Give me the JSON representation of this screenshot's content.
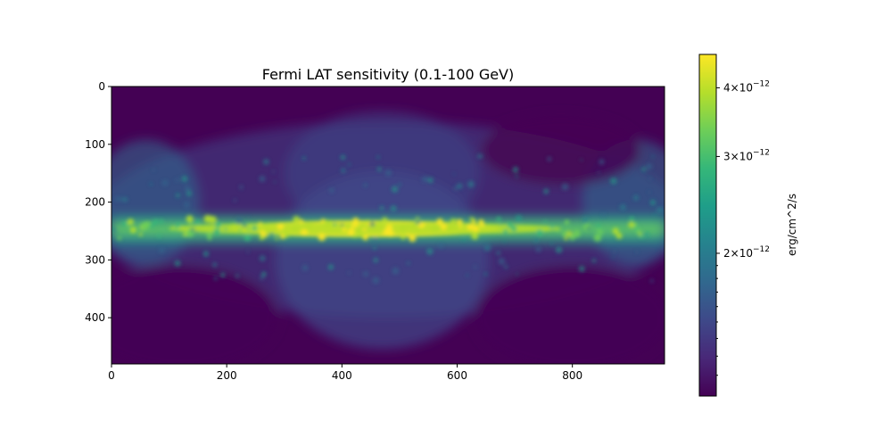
{
  "chart_data": {
    "type": "heatmap",
    "title": "Fermi LAT sensitivity (0.1-100 GeV)",
    "xlabel": "",
    "ylabel": "",
    "xlim": [
      0,
      960
    ],
    "ylim": [
      480,
      0
    ],
    "x_ticks": [
      0,
      200,
      400,
      600,
      800
    ],
    "y_ticks": [
      0,
      100,
      200,
      300,
      400
    ],
    "colorbar": {
      "label": "erg/cm^2/s",
      "scale": "log",
      "colormap": "viridis",
      "range": [
        1.1e-12,
        4.6e-12
      ],
      "ticks": [
        {
          "value": 4e-12,
          "mantissa": "4",
          "base": "10",
          "exponent": "−12"
        },
        {
          "value": 3e-12,
          "mantissa": "3",
          "base": "10",
          "exponent": "−12"
        },
        {
          "value": 2e-12,
          "mantissa": "2",
          "base": "10",
          "exponent": "−12"
        }
      ]
    },
    "map_description": "All-sky map with a bright band along row ~245; brightest near column 400-480"
  },
  "colors": {
    "viridis": [
      "#440154",
      "#482878",
      "#3e4989",
      "#31688e",
      "#26828e",
      "#1f9e89",
      "#35b779",
      "#6ece58",
      "#b5de2b",
      "#fde725"
    ]
  }
}
